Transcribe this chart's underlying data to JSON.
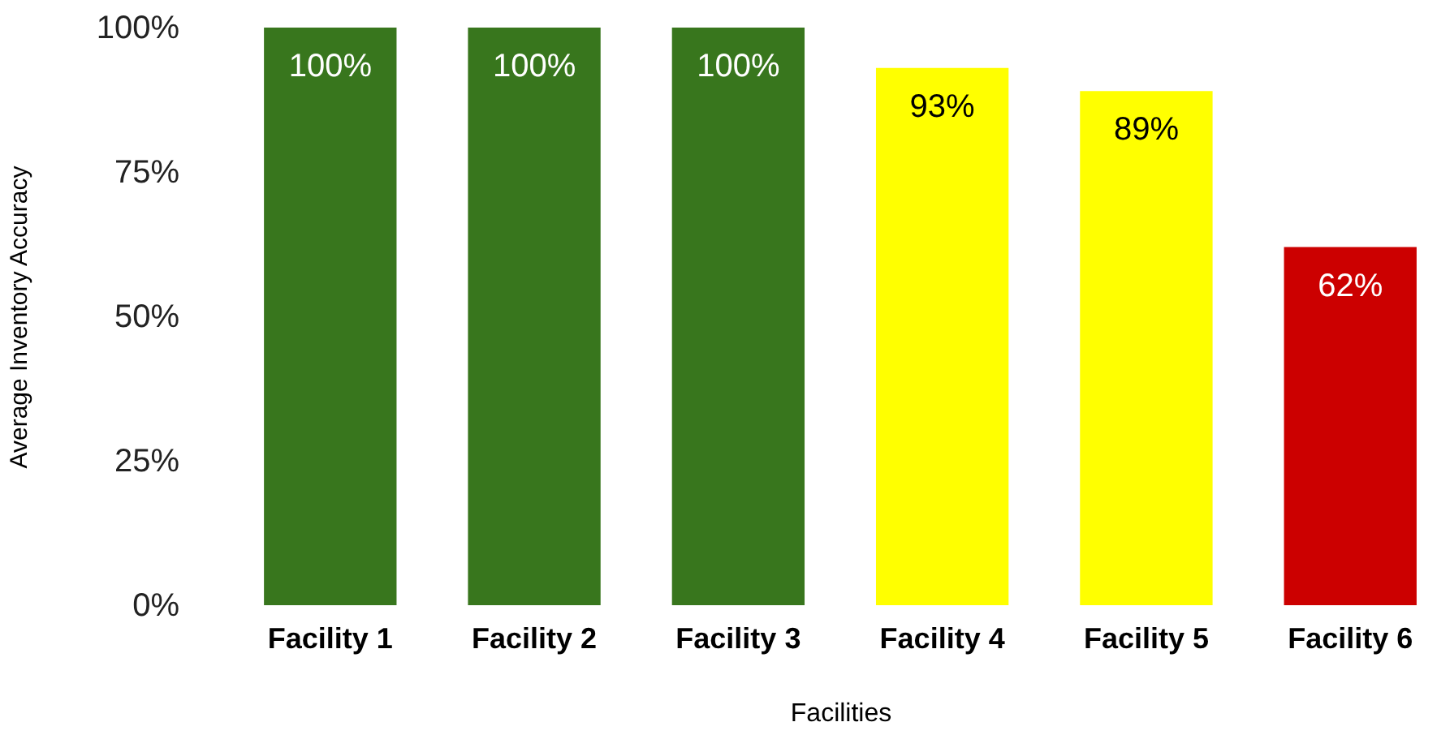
{
  "chart_data": {
    "type": "bar",
    "xlabel": "Facilities",
    "ylabel": "Average Inventory Accuracy",
    "categories": [
      "Facility 1",
      "Facility 2",
      "Facility 3",
      "Facility 4",
      "Facility 5",
      "Facility 6"
    ],
    "values": [
      100,
      100,
      100,
      93,
      89,
      62
    ],
    "colors": [
      "#38761d",
      "#38761d",
      "#38761d",
      "#ffff00",
      "#ffff00",
      "#cc0000"
    ],
    "value_labels": [
      "100%",
      "100%",
      "100%",
      "93%",
      "89%",
      "62%"
    ],
    "ylim": [
      0,
      100
    ],
    "yticks": [
      {
        "value": 0,
        "label": "0%"
      },
      {
        "value": 25,
        "label": "25%"
      },
      {
        "value": 50,
        "label": "50%"
      },
      {
        "value": 75,
        "label": "75%"
      },
      {
        "value": 100,
        "label": "100%"
      }
    ],
    "grid": false
  }
}
